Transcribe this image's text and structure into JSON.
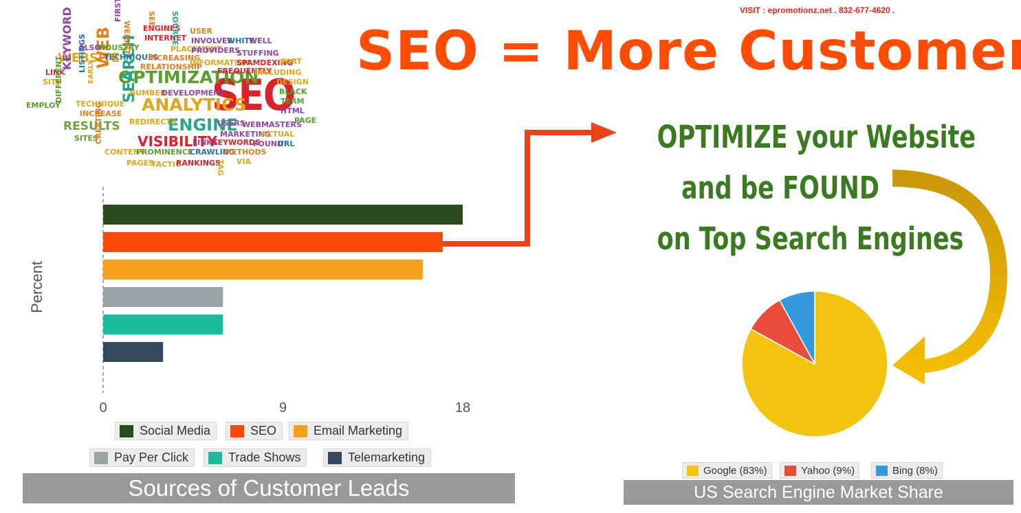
{
  "header": {
    "visit": "VISIT : epromotionz.net . 832-677-4620 .",
    "headline": "SEO = More Customers",
    "optimize_lines": [
      "OPTIMIZE your Website",
      "and be FOUND",
      "on Top Search Engines"
    ]
  },
  "word_cloud": {
    "words": [
      {
        "text": "SEO",
        "color": "#d8232a"
      },
      {
        "text": "OPTIMIZATION",
        "color": "#5b9c2c"
      },
      {
        "text": "ANALYTICS",
        "color": "#e0a51a"
      },
      {
        "text": "ENGINE",
        "color": "#2aa58a"
      },
      {
        "text": "VISIBILITY",
        "color": "#d8232a"
      },
      {
        "text": "SEARCH",
        "color": "#2aa58a"
      },
      {
        "text": "RESULTS",
        "color": "#6aa43a"
      },
      {
        "text": "WEBSITE",
        "color": "#e0a51a"
      },
      {
        "text": "KEYWORD",
        "color": "#8e44ad"
      },
      {
        "text": "WEB",
        "color": "#e67e22"
      },
      {
        "text": "INDUSTRY",
        "color": "#5b9c2c"
      },
      {
        "text": "TECHNIQUES",
        "color": "#2a6fa5"
      },
      {
        "text": "INCREASING",
        "color": "#e67e22"
      },
      {
        "text": "PLACEMENT",
        "color": "#e0a51a"
      },
      {
        "text": "INVOLVES",
        "color": "#8e44ad"
      },
      {
        "text": "PROVIDERS",
        "color": "#8e44ad"
      },
      {
        "text": "WHITE",
        "color": "#2a6fa5"
      },
      {
        "text": "WELL",
        "color": "#8e44ad"
      },
      {
        "text": "STUFFING",
        "color": "#8e44ad"
      },
      {
        "text": "INFORMATION",
        "color": "#e0a51a"
      },
      {
        "text": "SPAMDEXING",
        "color": "#d8232a"
      },
      {
        "text": "FREQUENTLY",
        "color": "#d8232a"
      },
      {
        "text": "RELATIONSHIP",
        "color": "#e67e22"
      },
      {
        "text": "NUMBER",
        "color": "#e0a51a"
      },
      {
        "text": "DEVELOPMENT",
        "color": "#8e44ad"
      },
      {
        "text": "DESIGN",
        "color": "#e0a51a"
      },
      {
        "text": "BLACK",
        "color": "#5b9c2c"
      },
      {
        "text": "TERM",
        "color": "#5b9c2c"
      },
      {
        "text": "HTML",
        "color": "#8e44ad"
      },
      {
        "text": "PAGE",
        "color": "#5b9c2c"
      },
      {
        "text": "USERS",
        "color": "#8e44ad"
      },
      {
        "text": "WEBMASTERS",
        "color": "#8e44ad"
      },
      {
        "text": "MARKETING",
        "color": "#8e44ad"
      },
      {
        "text": "ACTUAL",
        "color": "#e0a51a"
      },
      {
        "text": "REDIRECTS",
        "color": "#e0a51a"
      },
      {
        "text": "LINKS",
        "color": "#8e44ad"
      },
      {
        "text": "KEYWORDS",
        "color": "#d8232a"
      },
      {
        "text": "FOUND",
        "color": "#8e44ad"
      },
      {
        "text": "URL",
        "color": "#2a6fa5"
      },
      {
        "text": "CRAWLING",
        "color": "#2a6fa5"
      },
      {
        "text": "METHODS",
        "color": "#e67e22"
      },
      {
        "text": "CONTENT",
        "color": "#e0a51a"
      },
      {
        "text": "PROMINENCE",
        "color": "#5b9c2c"
      },
      {
        "text": "PAGES",
        "color": "#e0a51a"
      },
      {
        "text": "TACTIC",
        "color": "#e0a51a"
      },
      {
        "text": "RANKINGS",
        "color": "#d8232a"
      },
      {
        "text": "VIA",
        "color": "#e0a51a"
      },
      {
        "text": "LINK",
        "color": "#d8232a"
      },
      {
        "text": "SITE",
        "color": "#e0a51a"
      },
      {
        "text": "EMPLOY",
        "color": "#5b9c2c"
      },
      {
        "text": "TECHNIQUE",
        "color": "#e0a51a"
      },
      {
        "text": "INCREASE",
        "color": "#e67e22"
      },
      {
        "text": "SITES",
        "color": "#5b9c2c"
      },
      {
        "text": "LISTINGS",
        "color": "#2a6fa5"
      },
      {
        "text": "EARLY",
        "color": "#e0a51a"
      },
      {
        "text": "ALSO",
        "color": "#8e44ad"
      },
      {
        "text": "ENGINES",
        "color": "#d8232a"
      },
      {
        "text": "INTERNET",
        "color": "#d8232a"
      },
      {
        "text": "USER",
        "color": "#e67e22"
      },
      {
        "text": "SEE",
        "color": "#e67e22"
      },
      {
        "text": "SOURCE",
        "color": "#2aa58a"
      },
      {
        "text": "FIRST",
        "color": "#8e44ad"
      },
      {
        "text": "WEIGHT",
        "color": "#e67e22"
      },
      {
        "text": "PART",
        "color": "#e0a51a"
      },
      {
        "text": "INCLUDING",
        "color": "#e0a51a"
      },
      {
        "text": "DIFFERENT",
        "color": "#5b9c2c"
      },
      {
        "text": "CREATING",
        "color": "#e67e22"
      },
      {
        "text": "TAG",
        "color": "#e0a51a"
      }
    ]
  },
  "chart_data": [
    {
      "type": "bar",
      "orientation": "horizontal",
      "title": "Sources of Customer Leads",
      "ylabel": "Percent",
      "xlim": [
        0,
        18
      ],
      "xticks": [
        "0",
        "9",
        "18"
      ],
      "series": [
        {
          "name": "Social Media",
          "value": 18,
          "color": "#2a4a1c"
        },
        {
          "name": "SEO",
          "value": 17,
          "color": "#fc4a06"
        },
        {
          "name": "Email Marketing",
          "value": 16,
          "color": "#f7a01f"
        },
        {
          "name": "Pay Per Click",
          "value": 6,
          "color": "#99a3a4"
        },
        {
          "name": "Trade Shows",
          "value": 6,
          "color": "#1abc9c"
        },
        {
          "name": "Telemarketing",
          "value": 3,
          "color": "#34495e"
        }
      ],
      "legend": "bottom"
    },
    {
      "type": "pie",
      "title": "US Search Engine Market Share",
      "slices": [
        {
          "name": "Google",
          "label": "Google (83%)",
          "value": 83,
          "color": "#f1c40f"
        },
        {
          "name": "Yahoo",
          "label": "Yahoo (9%)",
          "value": 9,
          "color": "#e74c3c"
        },
        {
          "name": "Bing",
          "label": "Bing (8%)",
          "value": 8,
          "color": "#3498db"
        }
      ],
      "legend": "bottom"
    }
  ]
}
